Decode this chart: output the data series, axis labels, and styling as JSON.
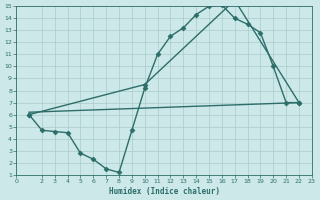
{
  "xlabel": "Humidex (Indice chaleur)",
  "bg_color": "#cce8e8",
  "grid_color": "#aacccc",
  "line_color": "#2d6e6a",
  "xlim": [
    0,
    23
  ],
  "ylim": [
    1,
    15
  ],
  "xticks": [
    0,
    2,
    3,
    4,
    5,
    6,
    7,
    8,
    9,
    10,
    11,
    12,
    13,
    14,
    15,
    16,
    17,
    18,
    19,
    20,
    21,
    22,
    23
  ],
  "yticks": [
    1,
    2,
    3,
    4,
    5,
    6,
    7,
    8,
    9,
    10,
    11,
    12,
    13,
    14,
    15
  ],
  "line1_x": [
    1,
    2,
    3,
    4,
    5,
    6,
    7,
    8,
    9,
    10,
    11,
    12,
    13,
    14,
    15,
    16,
    17,
    18,
    19,
    20,
    21,
    22
  ],
  "line1_y": [
    6.0,
    4.7,
    4.6,
    4.5,
    2.8,
    2.3,
    1.5,
    1.2,
    4.7,
    8.2,
    11.0,
    12.5,
    13.2,
    14.3,
    15.0,
    15.1,
    14.0,
    13.5,
    12.8,
    10.0,
    7.0,
    7.0
  ],
  "line2_x": [
    1,
    10,
    17,
    22
  ],
  "line2_y": [
    6.0,
    8.5,
    15.5,
    7.0
  ],
  "line3_x": [
    1,
    22
  ],
  "line3_y": [
    6.2,
    7.0
  ],
  "marker": "D",
  "markersize": 2.5,
  "linewidth": 1.0
}
